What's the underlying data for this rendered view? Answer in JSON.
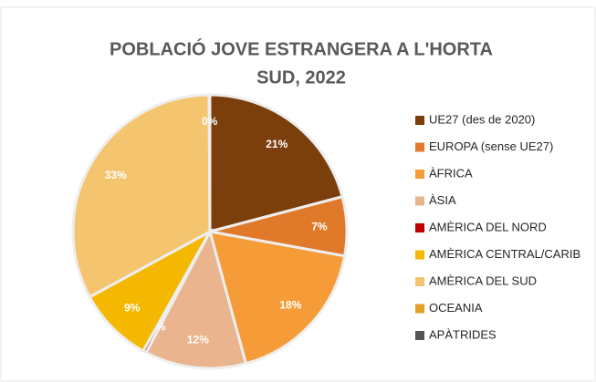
{
  "chart_data": {
    "type": "pie",
    "title": [
      "POBLACIÓ JOVE ESTRANGERA A L'HORTA",
      "SUD, 2022"
    ],
    "categories": [
      "UE27 (des de 2020)",
      "EUROPA (sense UE27)",
      "ÀFRICA",
      "ÀSIA",
      "AMÈRICA DEL NORD",
      "AMÈRICA CENTRAL/CARIB",
      "AMÈRICA DEL SUD",
      "OCEANIA",
      "APÀTRIDES"
    ],
    "values": [
      21,
      7,
      18,
      12,
      0.4,
      9,
      33,
      0.1,
      0
    ],
    "value_labels": [
      "21%",
      "7%",
      "18%",
      "12%",
      "0%",
      "9%",
      "33%",
      "0%",
      null
    ],
    "colors": [
      "#7b3f0c",
      "#e07a2a",
      "#f59b38",
      "#e9b48e",
      "#c00000",
      "#f4b800",
      "#f4c46e",
      "#e2a227",
      "#555555"
    ]
  }
}
